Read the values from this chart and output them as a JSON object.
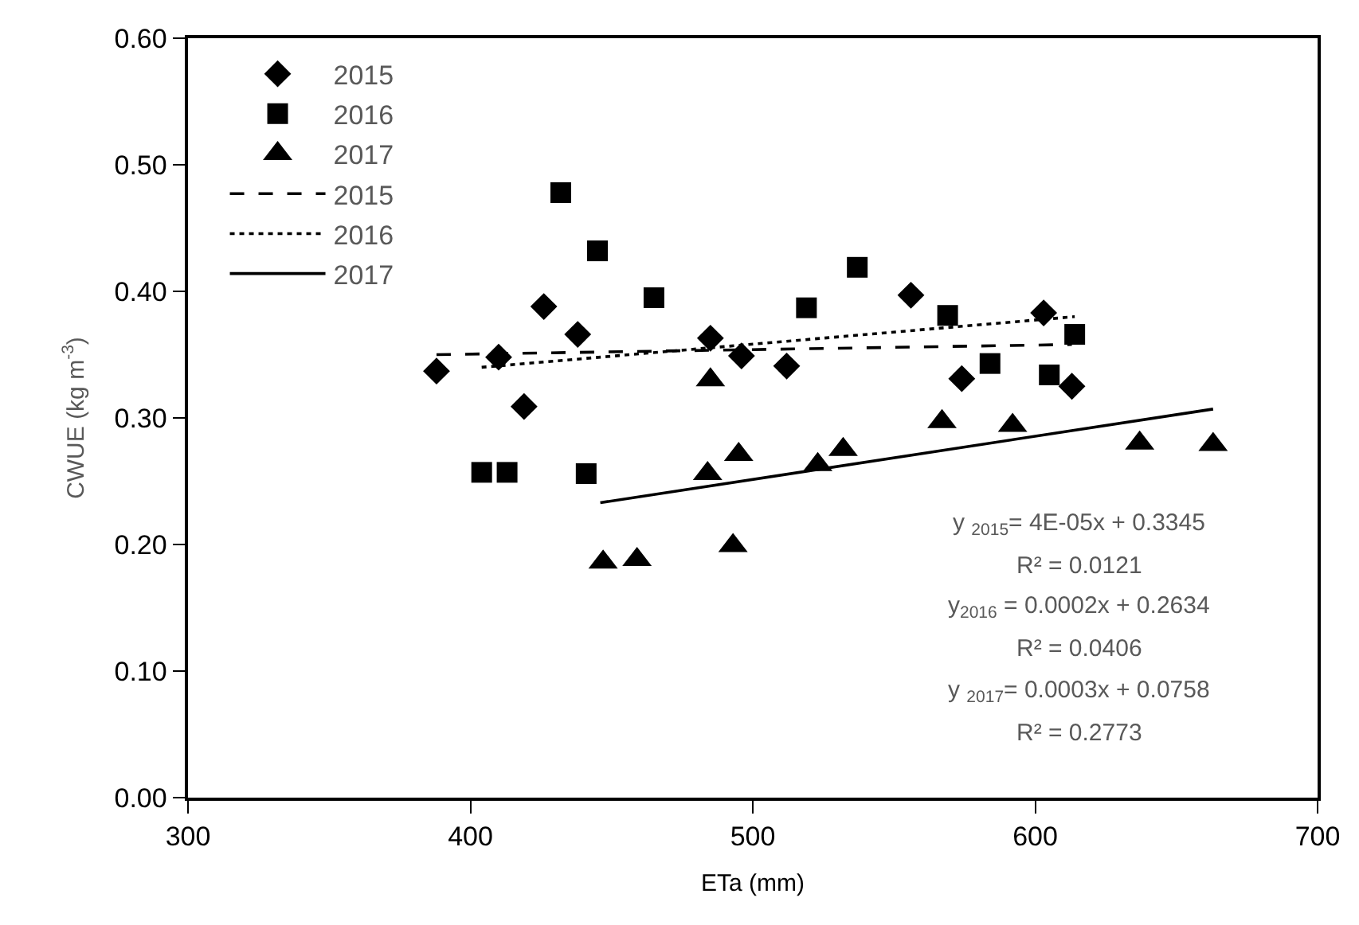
{
  "chart_data": {
    "type": "scatter",
    "xlabel": "ETa (mm)",
    "ylabel": "CWUE (kg m$^{-3}$)",
    "xlim": [
      300,
      700
    ],
    "xticks": [
      300,
      400,
      500,
      600,
      700
    ],
    "ylim": [
      0,
      0.6
    ],
    "yticks": [
      {
        "value": 0,
        "label": "0.00"
      },
      {
        "value": 0.1,
        "label": "0.10"
      },
      {
        "value": 0.2,
        "label": "0.20"
      },
      {
        "value": 0.3,
        "label": "0.30"
      },
      {
        "value": 0.4,
        "label": "0.40"
      },
      {
        "value": 0.5,
        "label": "0.50"
      },
      {
        "value": 0.6,
        "label": "0.60"
      }
    ],
    "legend": "top left",
    "series": [
      {
        "name": "2015",
        "marker": "diamond",
        "color": "#000000",
        "x": [
          388,
          410,
          419,
          426,
          438,
          485,
          496,
          512,
          556,
          574,
          603,
          613
        ],
        "values": [
          0.337,
          0.348,
          0.309,
          0.388,
          0.366,
          0.363,
          0.349,
          0.341,
          0.397,
          0.331,
          0.383,
          0.325
        ]
      },
      {
        "name": "2016",
        "marker": "square",
        "color": "#000000",
        "x": [
          404,
          413,
          432,
          441,
          445,
          465,
          519,
          537,
          569,
          584,
          605,
          614
        ],
        "values": [
          0.257,
          0.257,
          0.478,
          0.256,
          0.432,
          0.395,
          0.387,
          0.419,
          0.381,
          0.343,
          0.334,
          0.366
        ]
      },
      {
        "name": "2017",
        "marker": "triangle",
        "color": "#000000",
        "x": [
          447,
          459,
          484,
          485,
          493,
          495,
          523,
          532,
          567,
          592,
          637,
          663
        ],
        "values": [
          0.186,
          0.188,
          0.256,
          0.33,
          0.199,
          0.271,
          0.263,
          0.275,
          0.297,
          0.294,
          0.28,
          0.279
        ]
      },
      {
        "name": "2015",
        "type": "line",
        "line_style": "dashed",
        "color": "#000000",
        "x": [
          388,
          613
        ],
        "values": [
          0.35,
          0.358
        ]
      },
      {
        "name": "2016",
        "type": "line",
        "line_style": "dotted",
        "color": "#000000",
        "x": [
          404,
          614
        ],
        "values": [
          0.34,
          0.38
        ]
      },
      {
        "name": "2017",
        "type": "line",
        "line_style": "solid",
        "color": "#000000",
        "x": [
          446,
          663
        ],
        "values": [
          0.233,
          0.307
        ]
      }
    ],
    "annotations": [
      "y $_{2015}$= 4E-05x + 0.3345",
      "R² = 0.0121",
      "y$_{2016}$ = 0.0002x + 0.2634",
      "R² = 0.0406",
      "y $_{2017}$= 0.0003x + 0.0758",
      "R² = 0.2773"
    ]
  }
}
